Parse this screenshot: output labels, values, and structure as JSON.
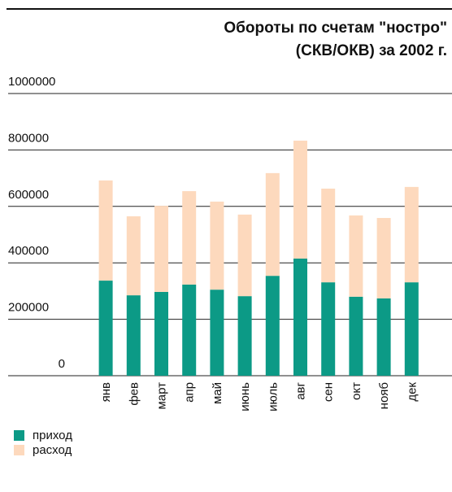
{
  "chart_data": {
    "type": "bar",
    "stacked": true,
    "title": [
      "Обороты по счетам \"ностро\"",
      "(СКВ/ОКВ) за 2002 г."
    ],
    "categories": [
      "янв",
      "фев",
      "март",
      "апр",
      "май",
      "июнь",
      "июль",
      "авг",
      "сен",
      "окт",
      "нояб",
      "дек"
    ],
    "series": [
      {
        "name": "приход",
        "color": "#0c9a86",
        "values": [
          337000,
          285000,
          297000,
          323000,
          305000,
          282000,
          354000,
          415000,
          331000,
          280000,
          274000,
          331000
        ]
      },
      {
        "name": "расход",
        "color": "#fdd9bd",
        "values": [
          355000,
          280000,
          305000,
          331000,
          312000,
          289000,
          364000,
          418000,
          332000,
          288000,
          285000,
          338000
        ]
      }
    ],
    "ylim": [
      0,
      1000000
    ],
    "yticks": [
      0,
      200000,
      400000,
      600000,
      800000,
      1000000
    ],
    "grid": true
  }
}
